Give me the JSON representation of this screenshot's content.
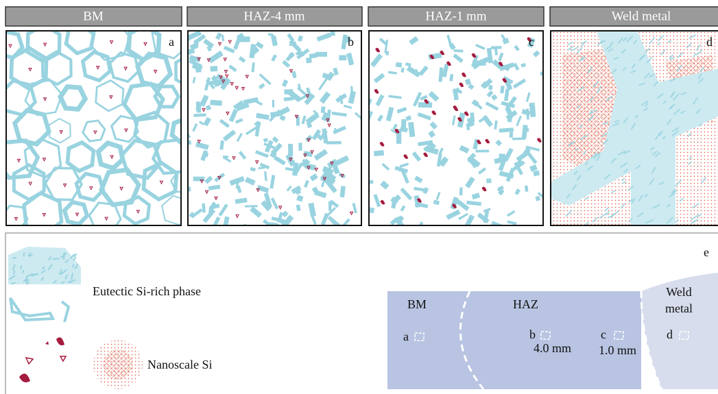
{
  "headers": [
    "BM",
    "HAZ-4 mm",
    "HAZ-1 mm",
    "Weld metal"
  ],
  "panel_letters": [
    "a",
    "b",
    "c",
    "d",
    "e"
  ],
  "legend": [
    "Eutectic Si-rich phase",
    "Nanoscale Si"
  ],
  "schematic": {
    "regions": [
      "BM",
      "HAZ"
    ],
    "weld": [
      "Weld",
      "metal"
    ],
    "points": [
      "a",
      "b",
      "c",
      "d"
    ],
    "distances": [
      "4.0 mm",
      "1.0 mm"
    ]
  }
}
